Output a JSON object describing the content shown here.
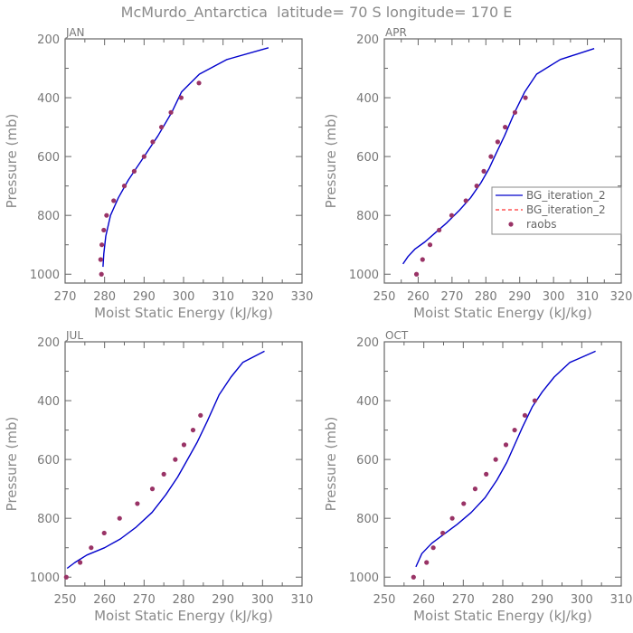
{
  "title": "McMurdo_Antarctica  latitude= 70 S longitude= 170 E",
  "legend": {
    "entries": [
      "BG_iteration_2",
      "BG_iteration_2",
      "raobs"
    ],
    "colors": [
      "#0000cc",
      "#ff3333",
      "#993366"
    ],
    "styles": [
      "solid",
      "dashed",
      "dot"
    ],
    "placement": "right, inside APR panel"
  },
  "chart_data": [
    {
      "type": "line",
      "panel_label": "JAN",
      "xlabel": "Moist Static Energy (kJ/kg)",
      "ylabel": "Pressure (mb)",
      "xlim": [
        270,
        330
      ],
      "ylim": [
        1030,
        200
      ],
      "xticks": [
        270,
        280,
        290,
        300,
        310,
        320,
        330
      ],
      "yticks": [
        200,
        400,
        600,
        800,
        1000
      ],
      "series": [
        {
          "name": "BG_iteration_2",
          "style": "solid",
          "color": "#0000cc",
          "x": [
            279.6,
            279.8,
            280.3,
            281.5,
            283.5,
            286,
            289.5,
            293.5,
            297,
            299.5,
            304,
            311,
            321.5
          ],
          "y": [
            975,
            930,
            870,
            800,
            740,
            680,
            610,
            530,
            450,
            380,
            320,
            270,
            230
          ]
        },
        {
          "name": "raobs",
          "style": "dot",
          "color": "#993366",
          "x": [
            279.2,
            279,
            279.3,
            279.8,
            280.5,
            282.3,
            285,
            287.5,
            290,
            292.2,
            294.4,
            296.8,
            299.4,
            303.9
          ],
          "y": [
            1000,
            950,
            900,
            850,
            800,
            750,
            700,
            650,
            600,
            550,
            500,
            450,
            400,
            350
          ]
        }
      ]
    },
    {
      "type": "line",
      "panel_label": "APR",
      "xlabel": "Moist Static Energy (kJ/kg)",
      "ylabel": "Pressure (mb)",
      "xlim": [
        250,
        320
      ],
      "ylim": [
        1030,
        200
      ],
      "xticks": [
        250,
        260,
        270,
        280,
        290,
        300,
        310,
        320
      ],
      "yticks": [
        200,
        400,
        600,
        800,
        1000
      ],
      "series": [
        {
          "name": "BG_iteration_2",
          "style": "solid",
          "color": "#0000cc",
          "x": [
            255.5,
            257,
            259,
            262,
            265,
            268.5,
            272,
            275.5,
            278.5,
            281,
            283,
            285.5,
            288.5,
            291.5,
            295,
            302,
            312
          ],
          "y": [
            965,
            940,
            915,
            890,
            860,
            825,
            785,
            740,
            690,
            640,
            590,
            530,
            450,
            380,
            320,
            270,
            233
          ]
        },
        {
          "name": "raobs",
          "style": "dot",
          "color": "#993366",
          "x": [
            259.5,
            261.3,
            263.5,
            266.2,
            269.9,
            274.1,
            277.3,
            279.4,
            281.5,
            283.5,
            285.7,
            288.6,
            291.7
          ],
          "y": [
            1000,
            950,
            900,
            850,
            800,
            750,
            700,
            650,
            600,
            550,
            500,
            450,
            400
          ]
        }
      ]
    },
    {
      "type": "line",
      "panel_label": "JUL",
      "xlabel": "Moist Static Energy (kJ/kg)",
      "ylabel": "Pressure (mb)",
      "xlim": [
        250,
        310
      ],
      "ylim": [
        1030,
        200
      ],
      "xticks": [
        250,
        260,
        270,
        280,
        290,
        300,
        310
      ],
      "yticks": [
        200,
        400,
        600,
        800,
        1000
      ],
      "series": [
        {
          "name": "BG_iteration_2",
          "style": "solid",
          "color": "#0000cc",
          "x": [
            250.5,
            252.5,
            255.5,
            260,
            264,
            268,
            272,
            275.5,
            278.5,
            281,
            283.5,
            286,
            289,
            292,
            295,
            300.5
          ],
          "y": [
            970,
            950,
            925,
            900,
            870,
            830,
            780,
            720,
            660,
            600,
            540,
            470,
            380,
            320,
            270,
            232
          ]
        },
        {
          "name": "raobs",
          "style": "dot",
          "color": "#993366",
          "x": [
            250.3,
            253.8,
            256.6,
            259.9,
            263.8,
            268.3,
            272.1,
            275,
            277.9,
            280.1,
            282.4,
            284.3
          ],
          "y": [
            1000,
            950,
            900,
            850,
            800,
            750,
            700,
            650,
            600,
            550,
            500,
            450
          ]
        }
      ]
    },
    {
      "type": "line",
      "panel_label": "OCT",
      "xlabel": "Moist Static Energy (kJ/kg)",
      "ylabel": "Pressure (mb)",
      "xlim": [
        250,
        310
      ],
      "ylim": [
        1030,
        200
      ],
      "xticks": [
        250,
        260,
        270,
        280,
        290,
        300,
        310
      ],
      "yticks": [
        200,
        400,
        600,
        800,
        1000
      ],
      "series": [
        {
          "name": "BG_iteration_2",
          "style": "solid",
          "color": "#0000cc",
          "x": [
            258,
            259.5,
            262,
            265,
            268.5,
            272,
            275.5,
            278.5,
            281,
            283,
            285,
            287.5,
            290,
            293,
            297,
            303.5
          ],
          "y": [
            965,
            920,
            885,
            855,
            820,
            780,
            730,
            670,
            610,
            550,
            490,
            420,
            370,
            320,
            270,
            232
          ]
        },
        {
          "name": "raobs",
          "style": "dot",
          "color": "#993366",
          "x": [
            257.4,
            260.7,
            262.4,
            264.8,
            267.2,
            270.1,
            273,
            275.8,
            278.2,
            280.8,
            283,
            285.6,
            288.1
          ],
          "y": [
            1000,
            950,
            900,
            850,
            800,
            750,
            700,
            650,
            600,
            550,
            500,
            450,
            400
          ]
        }
      ]
    }
  ]
}
